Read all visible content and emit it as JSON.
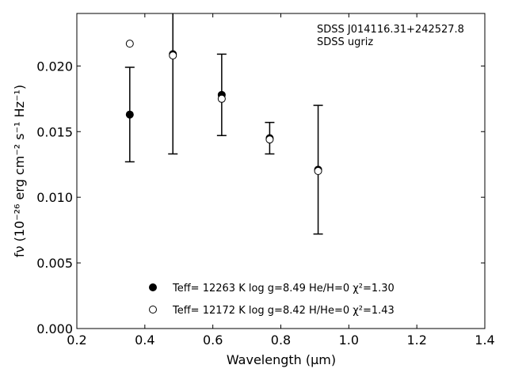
{
  "chart_data": {
    "type": "scatter",
    "xlabel": "Wavelength (μm)",
    "ylabel": "fν (10⁻²⁶ erg cm⁻² s⁻¹ Hz⁻¹)",
    "xlim": [
      0.2,
      1.4
    ],
    "ylim": [
      0.0,
      0.024
    ],
    "xticks": [
      0.2,
      0.4,
      0.6,
      0.8,
      1.0,
      1.2,
      1.4
    ],
    "xtick_labels": [
      "0.2",
      "0.4",
      "0.6",
      "0.8",
      "1.0",
      "1.2",
      "1.4"
    ],
    "yticks": [
      0.0,
      0.005,
      0.01,
      0.015,
      0.02
    ],
    "ytick_labels": [
      "0.000",
      "0.005",
      "0.010",
      "0.015",
      "0.020"
    ],
    "grid": false,
    "annotations": [
      "SDSS J014116.31+242527.8",
      "SDSS ugriz"
    ],
    "observed": {
      "x": [
        0.3557,
        0.4825,
        0.6261,
        0.7672,
        0.9097
      ],
      "y": [
        0.0163,
        0.0209,
        0.0178,
        0.0145,
        0.0121
      ],
      "err": [
        0.0036,
        0.0076,
        0.0031,
        0.0012,
        0.0049
      ],
      "marker": "errorbar"
    },
    "series": [
      {
        "name": "Teff= 12263 K  log g=8.49  He/H=0  χ²=1.30",
        "marker": "filled-circle",
        "x": [
          0.3557,
          0.4825,
          0.6261,
          0.7672,
          0.9097
        ],
        "y": [
          0.0163,
          0.0209,
          0.0178,
          0.0145,
          0.0121
        ]
      },
      {
        "name": "Teff= 12172 K  log g=8.42  H/He=0  χ²=1.43",
        "marker": "open-circle",
        "x": [
          0.3557,
          0.4825,
          0.6261,
          0.7672,
          0.9097
        ],
        "y": [
          0.0217,
          0.0208,
          0.0175,
          0.0144,
          0.012
        ]
      }
    ],
    "legend_position": "lower-center"
  }
}
